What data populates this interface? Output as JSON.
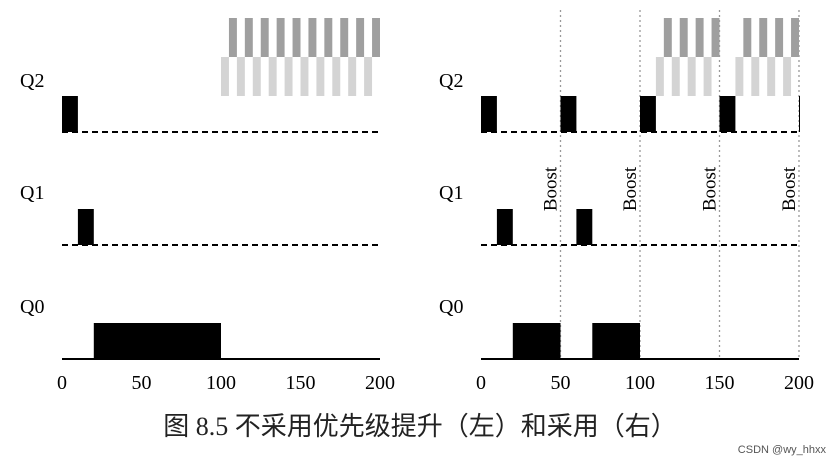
{
  "chart_data": [
    {
      "type": "timeline",
      "title": "",
      "xlim": [
        0,
        200
      ],
      "xticks": [
        0,
        50,
        100,
        150,
        200
      ],
      "queues": [
        "Q2",
        "Q1",
        "Q0"
      ],
      "running_jobs": [
        {
          "queue": "Q2",
          "start": 0,
          "end": 10
        },
        {
          "queue": "Q1",
          "start": 10,
          "end": 20
        },
        {
          "queue": "Q0",
          "start": 20,
          "end": 100
        }
      ],
      "interactive_jobs": {
        "start": 100,
        "end": 200,
        "period": 10,
        "duty": 5,
        "dark_offset": 5,
        "light_offset": 0
      },
      "boost_times": []
    },
    {
      "type": "timeline",
      "title": "",
      "xlim": [
        0,
        200
      ],
      "xticks": [
        0,
        50,
        100,
        150,
        200
      ],
      "queues": [
        "Q2",
        "Q1",
        "Q0"
      ],
      "running_jobs": [
        {
          "queue": "Q2",
          "start": 0,
          "end": 10
        },
        {
          "queue": "Q1",
          "start": 10,
          "end": 20
        },
        {
          "queue": "Q0",
          "start": 20,
          "end": 50
        },
        {
          "queue": "Q2",
          "start": 50,
          "end": 60
        },
        {
          "queue": "Q1",
          "start": 60,
          "end": 70
        },
        {
          "queue": "Q0",
          "start": 70,
          "end": 100
        },
        {
          "queue": "Q2",
          "start": 100,
          "end": 110
        },
        {
          "queue": "Q2",
          "start": 150,
          "end": 160
        },
        {
          "queue": "Q2",
          "start": 200,
          "end": 201
        }
      ],
      "interactive_jobs": [
        {
          "start": 110,
          "end": 150,
          "period": 10,
          "duty": 5,
          "dark_offset": 5,
          "light_offset": 0
        },
        {
          "start": 160,
          "end": 200,
          "period": 10,
          "duty": 5,
          "dark_offset": 5,
          "light_offset": 0
        }
      ],
      "boost_times": [
        50,
        100,
        150,
        200
      ],
      "boost_label": "Boost"
    }
  ],
  "caption": "图 8.5    不采用优先级提升（左）和采用（右）",
  "watermark": "CSDN @wy_hhxx"
}
